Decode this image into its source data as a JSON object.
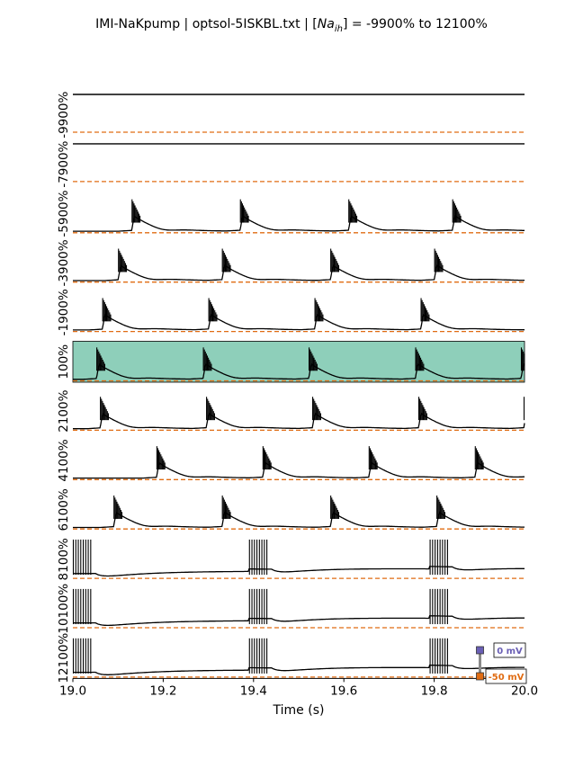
{
  "chart_data": {
    "type": "line",
    "title": {
      "prefix": "IMI-NaKpump | optsol-5ISKBL.txt | [",
      "sym": "Na",
      "sub": "ih",
      "suffix": "] = -9900% to 12100%"
    },
    "xlabel": "Time (s)",
    "xlim": [
      19.0,
      20.0
    ],
    "xticks": [
      "19.0",
      "19.2",
      "19.4",
      "19.6",
      "19.8",
      "20.0"
    ],
    "reference_line_color": "#e06c13",
    "trace_color": "#000000",
    "highlight_color": "#8ecfba",
    "panels": [
      {
        "label": "-9900%",
        "kind": "flat",
        "highlight": false
      },
      {
        "label": "-7900%",
        "kind": "flat",
        "highlight": false
      },
      {
        "label": "-5900%",
        "kind": "burst",
        "burst_times": [
          19.13,
          19.37,
          19.61,
          19.84
        ],
        "highlight": false
      },
      {
        "label": "-3900%",
        "kind": "burst",
        "burst_times": [
          19.1,
          19.33,
          19.57,
          19.8
        ],
        "highlight": false
      },
      {
        "label": "-1900%",
        "kind": "burst",
        "burst_times": [
          19.065,
          19.3,
          19.535,
          19.77
        ],
        "highlight": false
      },
      {
        "label": "100%",
        "kind": "burst",
        "burst_times": [
          19.052,
          19.288,
          19.522,
          19.758,
          19.992
        ],
        "highlight": true
      },
      {
        "label": "2100%",
        "kind": "burst",
        "burst_times": [
          19.06,
          19.295,
          19.53,
          19.765,
          19.998
        ],
        "highlight": false
      },
      {
        "label": "4100%",
        "kind": "burst",
        "burst_times": [
          19.185,
          19.42,
          19.655,
          19.89
        ],
        "highlight": false
      },
      {
        "label": "6100%",
        "kind": "burst",
        "burst_times": [
          19.09,
          19.33,
          19.57,
          19.805
        ],
        "highlight": false
      },
      {
        "label": "8100%",
        "kind": "spikes",
        "burst_times": [
          19.0,
          19.39,
          19.79
        ],
        "highlight": false
      },
      {
        "label": "10100%",
        "kind": "spikes",
        "burst_times": [
          19.0,
          19.39,
          19.79
        ],
        "highlight": false
      },
      {
        "label": "12100%",
        "kind": "spikes",
        "burst_times": [
          19.0,
          19.39,
          19.79
        ],
        "highlight": false
      }
    ],
    "scale_bar": {
      "top_label": "0 mV",
      "bottom_label": "-50 mV",
      "top_color": "#6a5fb5",
      "bottom_color": "#e06c13"
    }
  }
}
